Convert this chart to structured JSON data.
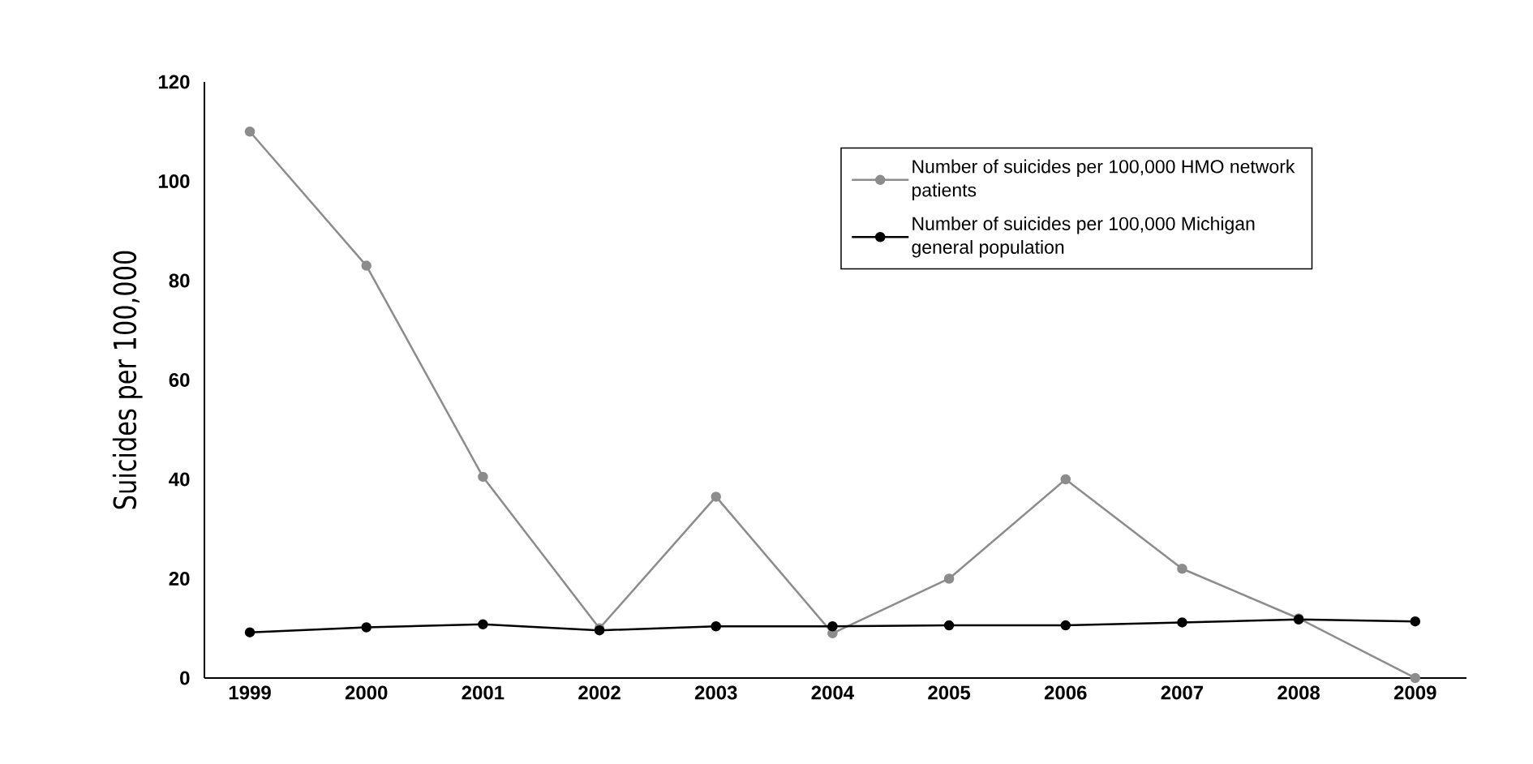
{
  "chart_data": {
    "type": "line",
    "ylabel": "Suicides per 100,000",
    "categories": [
      "1999",
      "2000",
      "2001",
      "2002",
      "2003",
      "2004",
      "2005",
      "2006",
      "2007",
      "2008",
      "2009"
    ],
    "series": [
      {
        "name": "Number of suicides per 100,000 HMO network patients",
        "color": "#8c8c8c",
        "values": [
          110,
          83,
          40.5,
          10,
          36.5,
          9,
          20,
          40,
          22,
          12,
          0
        ]
      },
      {
        "name": "Number of suicides per 100,000 Michigan general population",
        "color": "#000000",
        "values": [
          9.2,
          10.2,
          10.8,
          9.6,
          10.4,
          10.4,
          10.6,
          10.6,
          11.2,
          11.8,
          11.4
        ]
      }
    ],
    "ylim": [
      0,
      120
    ],
    "yticks": [
      0,
      20,
      40,
      60,
      80,
      100,
      120
    ],
    "grid": false,
    "legend": "top right",
    "marker": "circle",
    "line_style": "solid"
  }
}
